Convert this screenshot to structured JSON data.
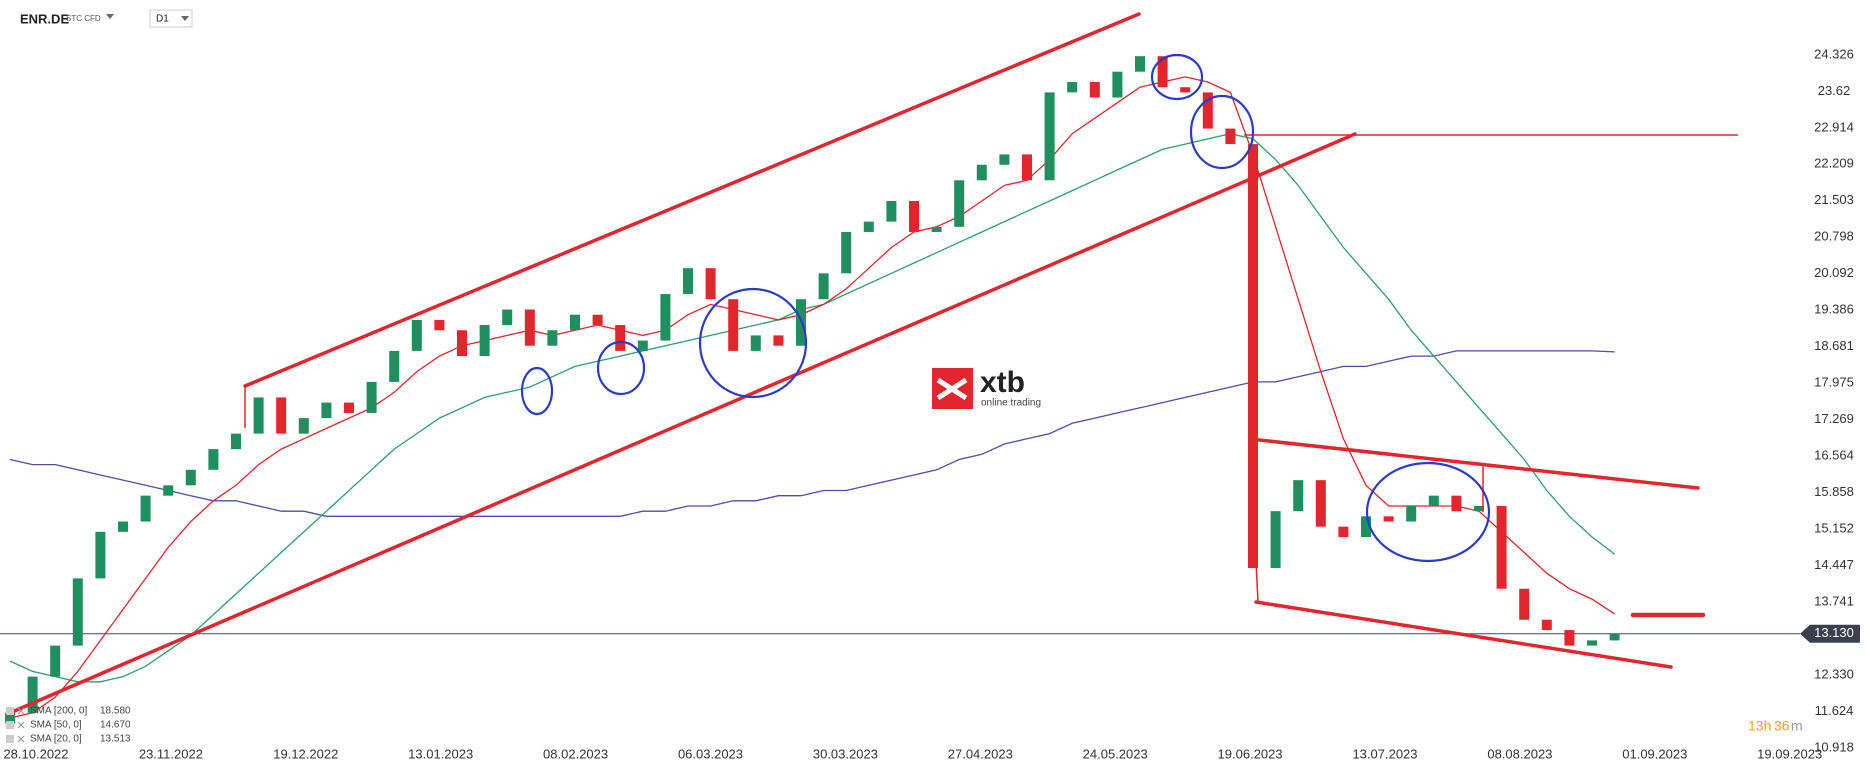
{
  "chart_data": {
    "type": "candlestick",
    "symbol": "ENR.DE",
    "instrument_type": "STC CFD",
    "timeframe": "D1",
    "logo": {
      "brand": "xtb",
      "tagline": "online trading"
    },
    "countdown": {
      "hours": "13h",
      "minutes": "36",
      "unit": "m"
    },
    "up_color": "#1f8f5f",
    "down_color": "#e3262d",
    "candles": {
      "first_open": 11.4,
      "close": [
        11.6,
        12.3,
        12.9,
        14.2,
        15.1,
        15.3,
        15.8,
        16.0,
        16.3,
        16.7,
        17.0,
        17.7,
        17.0,
        17.3,
        17.6,
        17.4,
        18.0,
        18.6,
        19.2,
        19.0,
        18.5,
        19.1,
        19.4,
        18.7,
        19.0,
        19.3,
        19.1,
        18.6,
        18.8,
        19.7,
        20.2,
        19.6,
        18.6,
        18.9,
        18.7,
        19.6,
        20.1,
        20.9,
        21.1,
        21.5,
        20.9,
        21.0,
        21.9,
        22.2,
        22.4,
        21.9,
        23.6,
        23.8,
        23.5,
        24.0,
        24.3,
        23.7,
        23.6,
        22.9,
        22.6,
        14.4,
        15.5,
        16.1,
        15.2,
        15.0,
        15.4,
        15.3,
        15.6,
        15.8,
        15.5,
        15.6,
        14.0,
        13.4,
        13.2,
        12.9,
        13.0,
        13.13
      ]
    },
    "series": [
      {
        "name": "SMA [200, 0]",
        "value_label": "18.580",
        "color": "#4a4fa8",
        "values": [
          16.5,
          16.4,
          16.4,
          16.3,
          16.2,
          16.1,
          16.0,
          15.9,
          15.8,
          15.7,
          15.7,
          15.6,
          15.5,
          15.5,
          15.4,
          15.4,
          15.4,
          15.4,
          15.4,
          15.4,
          15.4,
          15.4,
          15.4,
          15.4,
          15.4,
          15.4,
          15.4,
          15.4,
          15.5,
          15.5,
          15.6,
          15.6,
          15.7,
          15.7,
          15.8,
          15.8,
          15.9,
          15.9,
          16.0,
          16.1,
          16.2,
          16.3,
          16.5,
          16.6,
          16.8,
          16.9,
          17.0,
          17.2,
          17.3,
          17.4,
          17.5,
          17.6,
          17.7,
          17.8,
          17.9,
          18.0,
          18.0,
          18.1,
          18.2,
          18.3,
          18.3,
          18.4,
          18.5,
          18.5,
          18.6,
          18.6,
          18.6,
          18.6,
          18.6,
          18.6,
          18.6,
          18.58
        ]
      },
      {
        "name": "SMA [50, 0]",
        "value_label": "14.670",
        "color": "#2e9e6e",
        "values": [
          12.6,
          12.4,
          12.3,
          12.2,
          12.2,
          12.3,
          12.5,
          12.8,
          13.1,
          13.5,
          13.9,
          14.3,
          14.7,
          15.1,
          15.5,
          15.9,
          16.3,
          16.7,
          17.0,
          17.3,
          17.5,
          17.7,
          17.8,
          17.9,
          18.1,
          18.3,
          18.4,
          18.5,
          18.6,
          18.7,
          18.8,
          18.9,
          19.0,
          19.1,
          19.2,
          19.4,
          19.5,
          19.7,
          19.9,
          20.1,
          20.3,
          20.5,
          20.7,
          20.9,
          21.1,
          21.3,
          21.5,
          21.7,
          21.9,
          22.1,
          22.3,
          22.5,
          22.6,
          22.7,
          22.8,
          22.7,
          22.3,
          21.8,
          21.2,
          20.6,
          20.1,
          19.6,
          19.0,
          18.5,
          18.0,
          17.5,
          17.0,
          16.5,
          15.9,
          15.4,
          15.0,
          14.67
        ]
      },
      {
        "name": "SMA [20, 0]",
        "value_label": "13.513",
        "color": "#e3262d",
        "values": [
          11.5,
          11.6,
          11.9,
          12.4,
          13.0,
          13.6,
          14.2,
          14.8,
          15.3,
          15.7,
          16.0,
          16.4,
          16.7,
          16.9,
          17.1,
          17.3,
          17.5,
          17.8,
          18.2,
          18.5,
          18.7,
          18.8,
          18.9,
          19.0,
          18.9,
          19.0,
          19.1,
          19.0,
          18.9,
          19.0,
          19.3,
          19.5,
          19.4,
          19.3,
          19.2,
          19.3,
          19.5,
          19.8,
          20.2,
          20.6,
          20.9,
          21.0,
          21.2,
          21.5,
          21.8,
          21.9,
          22.3,
          22.8,
          23.1,
          23.4,
          23.7,
          23.8,
          23.9,
          23.8,
          23.6,
          22.4,
          21.0,
          19.6,
          18.2,
          16.9,
          16.0,
          15.6,
          15.6,
          15.6,
          15.6,
          15.5,
          15.1,
          14.7,
          14.3,
          14.0,
          13.8,
          13.513
        ]
      }
    ],
    "current_price": {
      "value": 13.13,
      "label": "13.130"
    },
    "ylim": [
      10.9,
      25.0
    ],
    "yticks": [
      24.326,
      23.62,
      22.914,
      22.209,
      21.503,
      20.798,
      20.092,
      19.386,
      18.681,
      17.975,
      17.269,
      16.564,
      15.858,
      15.152,
      14.447,
      13.741,
      {
        "value": 12.33,
        "label": "12.330"
      },
      11.624,
      10.918
    ],
    "xticks": [
      "28.10.2022",
      "23.11.2022",
      "19.12.2022",
      "13.01.2023",
      "08.02.2023",
      "06.03.2023",
      "30.03.2023",
      "27.04.2023",
      "24.05.2023",
      "19.06.2023",
      "13.07.2023",
      "08.08.2023",
      "01.09.2023",
      "19.09.2023"
    ]
  }
}
